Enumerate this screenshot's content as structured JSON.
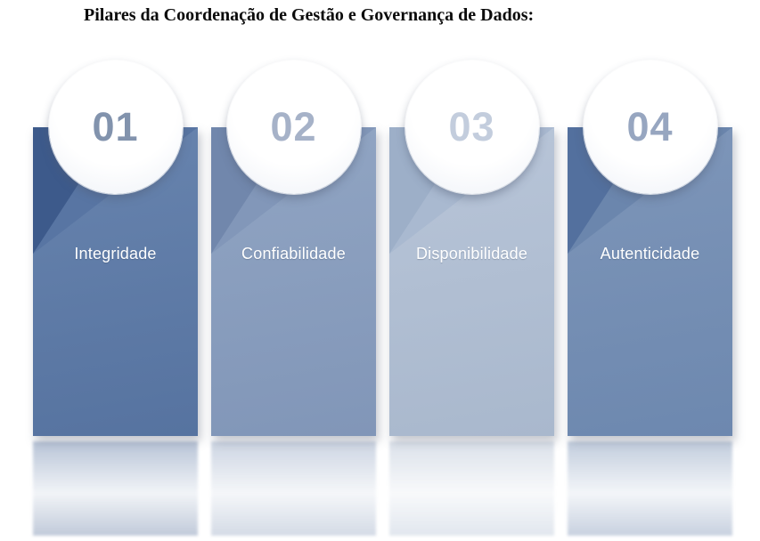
{
  "title": "Pilares da Coordenação de Gestão e Governança de Dados:",
  "pillars": [
    {
      "number": "01",
      "label": "Integridade",
      "colors": {
        "dark": "#3d5a8b",
        "mid": "#5875a3",
        "body_top": "#6884ae",
        "body_bottom": "#5673a0",
        "number": "#8293ad",
        "reflection_top": "rgba(86,115,160,0.42)",
        "reflection_mid": "rgba(86,115,160,0.08)",
        "reflection_bottom": "rgba(61,90,139,0.32)"
      }
    },
    {
      "number": "02",
      "label": "Confiabilidade",
      "colors": {
        "dark": "#7187ac",
        "mid": "#8297b9",
        "body_top": "#91a5c3",
        "body_bottom": "#8196b8",
        "number": "#a6b2c8",
        "reflection_top": "rgba(129,150,184,0.40)",
        "reflection_mid": "rgba(129,150,184,0.08)",
        "reflection_bottom": "rgba(113,135,172,0.30)"
      }
    },
    {
      "number": "03",
      "label": "Disponibilidade",
      "colors": {
        "dark": "#9dafc8",
        "mid": "#a9b9d0",
        "body_top": "#b8c5d8",
        "body_bottom": "#a9b8cd",
        "number": "#c3cddd",
        "reflection_top": "rgba(169,184,205,0.42)",
        "reflection_mid": "rgba(169,184,205,0.08)",
        "reflection_bottom": "rgba(157,175,200,0.30)"
      }
    },
    {
      "number": "04",
      "label": "Autenticidade",
      "colors": {
        "dark": "#53709e",
        "mid": "#6b86ad",
        "body_top": "#7e96b9",
        "body_bottom": "#6d88af",
        "number": "#97a6c0",
        "reflection_top": "rgba(109,136,175,0.42)",
        "reflection_mid": "rgba(109,136,175,0.08)",
        "reflection_bottom": "rgba(83,112,158,0.32)"
      }
    }
  ]
}
